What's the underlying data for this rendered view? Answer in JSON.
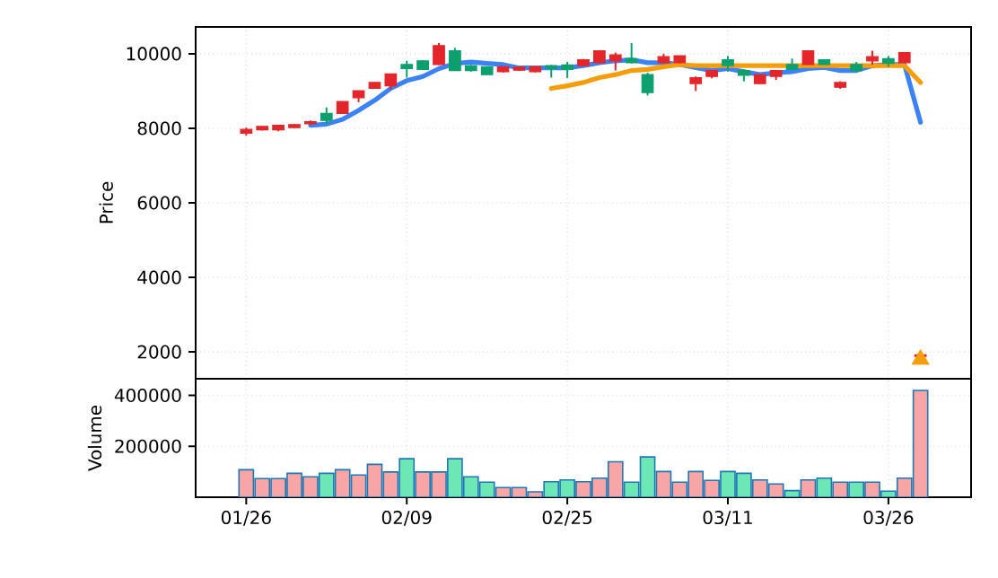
{
  "chart_data": [
    {
      "type": "candlestick",
      "ylabel": "Price",
      "tick_labels": "y",
      "grid": true,
      "categories": [
        null,
        null,
        null,
        null,
        null,
        null,
        null,
        null,
        null,
        null,
        null,
        null,
        null,
        null,
        null,
        null,
        null,
        null,
        null,
        null,
        null,
        null,
        null,
        null,
        null,
        null,
        null,
        null,
        null,
        null,
        null,
        null,
        null,
        null,
        null,
        null,
        null,
        null,
        null,
        null,
        null,
        null,
        null
      ],
      "ylim": [
        1280,
        10720
      ],
      "yticks": [
        2000,
        4000,
        6000,
        8000,
        10000
      ],
      "ohlc": [
        [
          7870,
          8020,
          7800,
          7970
        ],
        [
          7960,
          8060,
          7940,
          8050
        ],
        [
          7960,
          8090,
          7920,
          8080
        ],
        [
          8020,
          8110,
          8010,
          8100
        ],
        [
          8120,
          8210,
          8090,
          8180
        ],
        [
          8400,
          8560,
          8110,
          8210
        ],
        [
          8400,
          8720,
          8390,
          8720
        ],
        [
          8820,
          9010,
          8700,
          9010
        ],
        [
          9070,
          9230,
          9060,
          9230
        ],
        [
          9140,
          9460,
          9040,
          9460
        ],
        [
          9710,
          9810,
          9360,
          9600
        ],
        [
          9810,
          9830,
          9560,
          9580
        ],
        [
          9710,
          10290,
          9700,
          10220
        ],
        [
          10080,
          10160,
          9550,
          9550
        ],
        [
          9680,
          9700,
          9520,
          9550
        ],
        [
          9650,
          9660,
          9440,
          9440
        ],
        [
          9520,
          9650,
          9500,
          9650
        ],
        [
          9560,
          9660,
          9540,
          9640
        ],
        [
          9520,
          9670,
          9500,
          9650
        ],
        [
          9680,
          9700,
          9360,
          9600
        ],
        [
          9700,
          9780,
          9350,
          9580
        ],
        [
          9680,
          9860,
          9660,
          9840
        ],
        [
          9760,
          10080,
          9740,
          10080
        ],
        [
          9810,
          10030,
          9550,
          9970
        ],
        [
          9870,
          10290,
          9740,
          9760
        ],
        [
          9440,
          9490,
          8880,
          8960
        ],
        [
          9760,
          10000,
          9740,
          9920
        ],
        [
          9760,
          9950,
          9740,
          9950
        ],
        [
          9200,
          9390,
          9000,
          9360
        ],
        [
          9390,
          9550,
          9340,
          9550
        ],
        [
          9840,
          9940,
          9520,
          9680
        ],
        [
          9550,
          9580,
          9260,
          9420
        ],
        [
          9200,
          9440,
          9190,
          9440
        ],
        [
          9390,
          9550,
          9300,
          9550
        ],
        [
          9710,
          9870,
          9580,
          9580
        ],
        [
          9710,
          10080,
          9700,
          10080
        ],
        [
          9840,
          9850,
          9710,
          9710
        ],
        [
          9100,
          9260,
          9060,
          9230
        ],
        [
          9710,
          9780,
          9500,
          9550
        ],
        [
          9810,
          10080,
          9710,
          9920
        ],
        [
          9870,
          9940,
          9650,
          9740
        ],
        [
          9760,
          10030,
          9750,
          10030
        ],
        [
          1880,
          1930,
          1860,
          1920
        ]
      ],
      "colors": [
        "#e3262b",
        "#e3262b",
        "#e3262b",
        "#e3262b",
        "#e3262b",
        "#0e9f6e",
        "#e3262b",
        "#e3262b",
        "#e3262b",
        "#e3262b",
        "#0e9f6e",
        "#0e9f6e",
        "#e3262b",
        "#0e9f6e",
        "#0e9f6e",
        "#0e9f6e",
        "#e3262b",
        "#e3262b",
        "#e3262b",
        "#0e9f6e",
        "#0e9f6e",
        "#e3262b",
        "#e3262b",
        "#e3262b",
        "#0e9f6e",
        "#0e9f6e",
        "#e3262b",
        "#e3262b",
        "#e3262b",
        "#e3262b",
        "#0e9f6e",
        "#0e9f6e",
        "#e3262b",
        "#e3262b",
        "#0e9f6e",
        "#e3262b",
        "#0e9f6e",
        "#e3262b",
        "#0e9f6e",
        "#e3262b",
        "#0e9f6e",
        "#e3262b",
        "#e3262b"
      ],
      "series": [
        {
          "type": "line",
          "color": "#3b82f6",
          "values": [
            null,
            null,
            null,
            null,
            8080,
            8110,
            8240,
            8480,
            8750,
            9070,
            9280,
            9390,
            9600,
            9740,
            9780,
            9740,
            9710,
            9620,
            9620,
            9620,
            9620,
            9680,
            9760,
            9810,
            9840,
            9760,
            9760,
            9710,
            9630,
            9550,
            9600,
            9520,
            9440,
            9490,
            9520,
            9600,
            9630,
            9550,
            9550,
            9680,
            9710,
            9710,
            8160
          ]
        },
        {
          "type": "line",
          "color": "#f59e0b",
          "values": [
            null,
            null,
            null,
            null,
            null,
            null,
            null,
            null,
            null,
            null,
            null,
            null,
            null,
            null,
            null,
            null,
            null,
            null,
            null,
            9070,
            9140,
            9230,
            9360,
            9440,
            9550,
            9580,
            9650,
            9710,
            9680,
            9680,
            9680,
            9680,
            9680,
            9680,
            9680,
            9680,
            9680,
            9680,
            9680,
            9680,
            9680,
            9680,
            9230
          ]
        },
        {
          "type": "scatter",
          "marker": "triangle",
          "color": "#f59e0b",
          "values": [
            null,
            null,
            null,
            null,
            null,
            null,
            null,
            null,
            null,
            null,
            null,
            null,
            null,
            null,
            null,
            null,
            null,
            null,
            null,
            null,
            null,
            null,
            null,
            null,
            null,
            null,
            null,
            null,
            null,
            null,
            null,
            null,
            null,
            null,
            null,
            null,
            null,
            null,
            null,
            null,
            null,
            null,
            1800
          ]
        }
      ]
    },
    {
      "type": "bar",
      "ylabel": "Volume",
      "grid": true,
      "categories": [
        "01/26",
        null,
        null,
        null,
        null,
        null,
        null,
        null,
        null,
        null,
        "02/09",
        null,
        null,
        null,
        null,
        null,
        null,
        null,
        null,
        null,
        "02/25",
        null,
        null,
        null,
        null,
        null,
        null,
        null,
        null,
        null,
        "03/11",
        null,
        null,
        null,
        null,
        null,
        null,
        null,
        null,
        null,
        "03/26",
        null,
        null
      ],
      "ylim": [
        0,
        465000
      ],
      "yticks": [
        200000,
        400000
      ],
      "values": [
        108000,
        73000,
        73000,
        94000,
        80000,
        94000,
        108000,
        87000,
        129000,
        99000,
        151000,
        99000,
        99000,
        151000,
        80000,
        59000,
        38000,
        38000,
        21000,
        61000,
        68000,
        61000,
        75000,
        139000,
        59000,
        158000,
        101000,
        59000,
        101000,
        66000,
        101000,
        94000,
        68000,
        52000,
        26000,
        68000,
        75000,
        59000,
        59000,
        59000,
        24000,
        75000,
        419000
      ],
      "colors": [
        "#f8a5a5",
        "#f8a5a5",
        "#f8a5a5",
        "#f8a5a5",
        "#f8a5a5",
        "#6ee7b7",
        "#f8a5a5",
        "#f8a5a5",
        "#f8a5a5",
        "#f8a5a5",
        "#6ee7b7",
        "#f8a5a5",
        "#f8a5a5",
        "#6ee7b7",
        "#6ee7b7",
        "#6ee7b7",
        "#f8a5a5",
        "#f8a5a5",
        "#f8a5a5",
        "#6ee7b7",
        "#6ee7b7",
        "#f8a5a5",
        "#f8a5a5",
        "#f8a5a5",
        "#6ee7b7",
        "#6ee7b7",
        "#f8a5a5",
        "#f8a5a5",
        "#f8a5a5",
        "#f8a5a5",
        "#6ee7b7",
        "#6ee7b7",
        "#f8a5a5",
        "#f8a5a5",
        "#6ee7b7",
        "#f8a5a5",
        "#6ee7b7",
        "#f8a5a5",
        "#6ee7b7",
        "#f8a5a5",
        "#6ee7b7",
        "#f8a5a5",
        "#f8a5a5"
      ]
    }
  ]
}
